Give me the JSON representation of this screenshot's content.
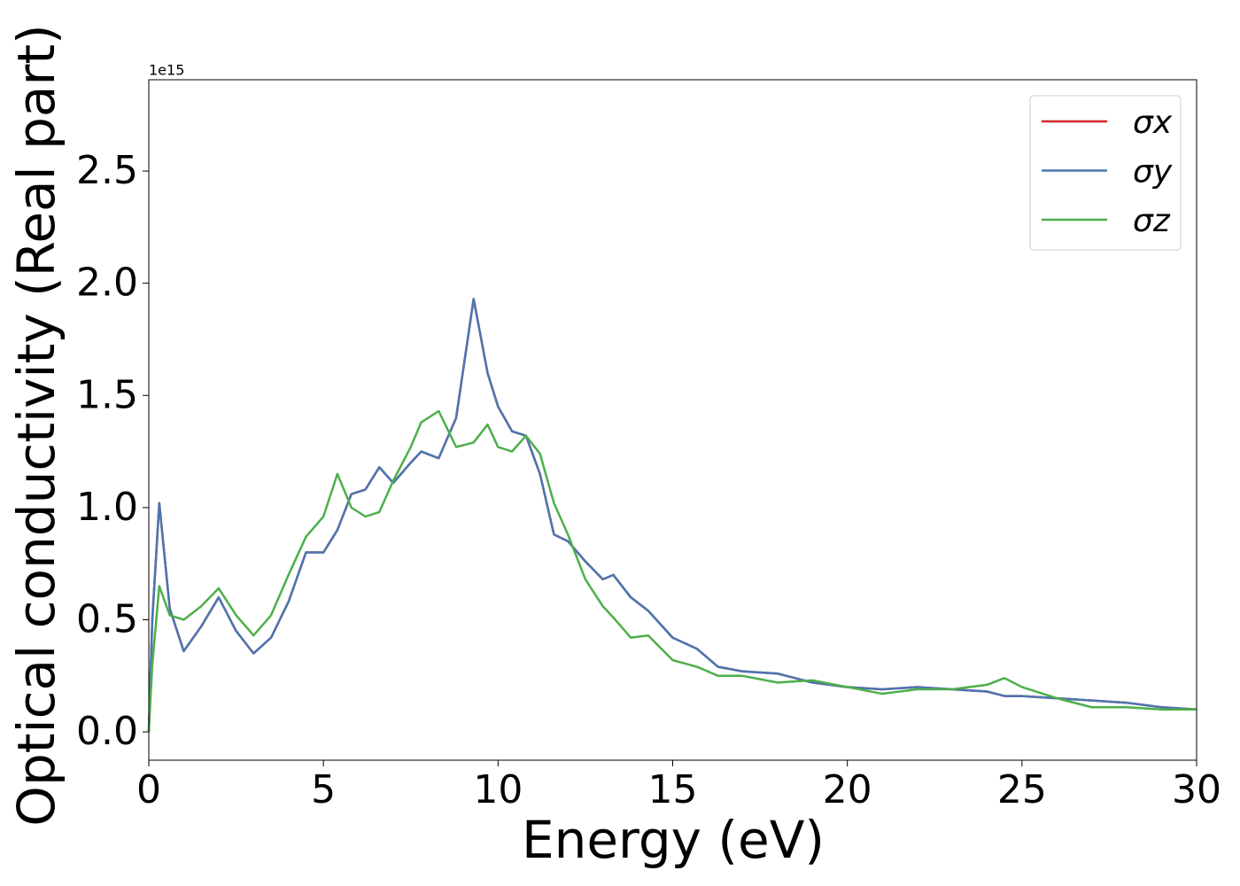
{
  "chart_data": {
    "type": "line",
    "xlabel": "Energy (eV)",
    "ylabel": "Optical conductivity (Real part)",
    "y_offset_label": "1e15",
    "x": [
      0,
      0.1,
      0.3,
      0.6,
      1.0,
      1.5,
      2.0,
      2.5,
      3.0,
      3.5,
      4.0,
      4.5,
      5.0,
      5.4,
      5.8,
      6.2,
      6.6,
      7.0,
      7.5,
      7.8,
      8.3,
      8.8,
      9.3,
      9.7,
      10.0,
      10.4,
      10.8,
      11.2,
      11.6,
      12.0,
      12.5,
      13.0,
      13.3,
      13.8,
      14.3,
      15.0,
      15.7,
      16.3,
      17,
      18,
      19,
      20,
      21,
      22,
      23,
      24,
      24.5,
      25,
      26,
      27,
      28,
      29,
      30
    ],
    "series": [
      {
        "name": "σx",
        "color": "#d62728",
        "values": [
          0,
          0.5,
          1.02,
          0.55,
          0.36,
          0.47,
          0.6,
          0.45,
          0.35,
          0.42,
          0.58,
          0.8,
          0.8,
          0.9,
          1.06,
          1.08,
          1.18,
          1.11,
          1.2,
          1.25,
          1.22,
          1.4,
          1.93,
          1.6,
          1.45,
          1.34,
          1.32,
          1.15,
          0.88,
          0.85,
          0.76,
          0.68,
          0.7,
          0.6,
          0.54,
          0.42,
          0.37,
          0.29,
          0.27,
          0.26,
          0.22,
          0.2,
          0.19,
          0.2,
          0.19,
          0.18,
          0.16,
          0.16,
          0.15,
          0.14,
          0.13,
          0.11,
          0.1
        ]
      },
      {
        "name": "σy",
        "color": "#4a76b0",
        "values": [
          0,
          0.5,
          1.02,
          0.55,
          0.36,
          0.47,
          0.6,
          0.45,
          0.35,
          0.42,
          0.58,
          0.8,
          0.8,
          0.9,
          1.06,
          1.08,
          1.18,
          1.11,
          1.2,
          1.25,
          1.22,
          1.4,
          1.93,
          1.6,
          1.45,
          1.34,
          1.32,
          1.15,
          0.88,
          0.85,
          0.76,
          0.68,
          0.7,
          0.6,
          0.54,
          0.42,
          0.37,
          0.29,
          0.27,
          0.26,
          0.22,
          0.2,
          0.19,
          0.2,
          0.19,
          0.18,
          0.16,
          0.16,
          0.15,
          0.14,
          0.13,
          0.11,
          0.1
        ]
      },
      {
        "name": "σz",
        "color": "#4daf4a",
        "values": [
          0,
          0.3,
          0.65,
          0.52,
          0.5,
          0.56,
          0.64,
          0.52,
          0.43,
          0.52,
          0.7,
          0.87,
          0.96,
          1.15,
          1.0,
          0.96,
          0.98,
          1.12,
          1.27,
          1.38,
          1.43,
          1.27,
          1.29,
          1.37,
          1.27,
          1.25,
          1.32,
          1.24,
          1.02,
          0.88,
          0.68,
          0.56,
          0.51,
          0.42,
          0.43,
          0.32,
          0.29,
          0.25,
          0.25,
          0.22,
          0.23,
          0.2,
          0.17,
          0.19,
          0.19,
          0.21,
          0.24,
          0.2,
          0.15,
          0.11,
          0.11,
          0.1,
          0.1
        ]
      }
    ],
    "xlim": [
      0,
      30
    ],
    "xticks": [
      0,
      5,
      10,
      15,
      20,
      25,
      30
    ],
    "ylim": [
      -0.126,
      2.907
    ],
    "yticks": [
      {
        "value": 0,
        "label": "0.0"
      },
      0.5,
      {
        "value": 1,
        "label": "1.0"
      },
      1.5,
      {
        "value": 2,
        "label": "2.0"
      },
      2.5
    ],
    "grid": false,
    "legend": "upper right"
  }
}
